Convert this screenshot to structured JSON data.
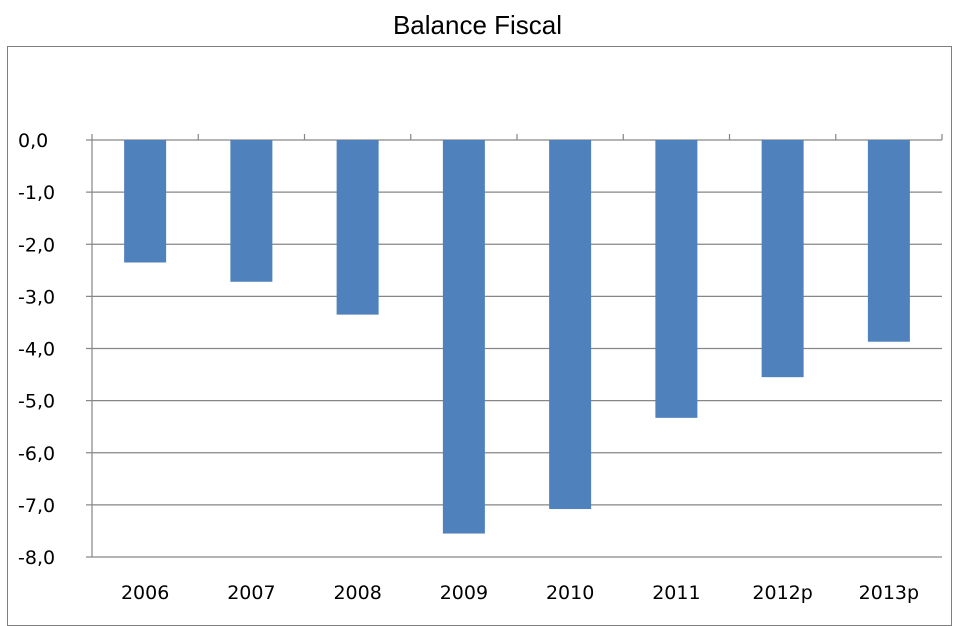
{
  "chart_data": {
    "type": "bar",
    "title": "Balance Fiscal",
    "categories": [
      "2006",
      "2007",
      "2008",
      "2009",
      "2010",
      "2011",
      "2012p",
      "2013p"
    ],
    "values": [
      -2.35,
      -2.72,
      -3.35,
      -7.55,
      -7.08,
      -5.33,
      -4.55,
      -3.87
    ],
    "ylim": [
      -8,
      0
    ],
    "yticks": [
      "0,0",
      "-1,0",
      "-2,0",
      "-3,0",
      "-4,0",
      "-5,0",
      "-6,0",
      "-7,0",
      "-8,0"
    ],
    "bar_color": "#4f81bd",
    "grid": true
  }
}
